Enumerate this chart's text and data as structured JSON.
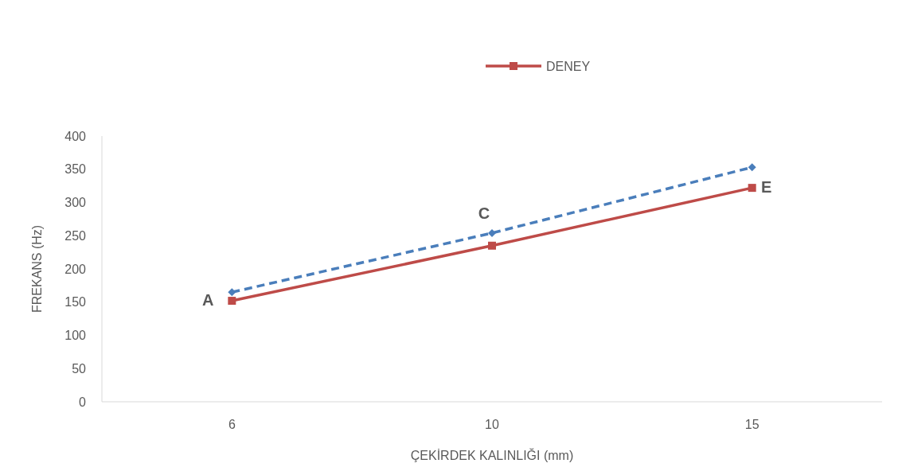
{
  "chart_data": {
    "type": "line",
    "xlabel": "ÇEKİRDEK KALINLIĞI (mm)",
    "ylabel": "FREKANS  (Hz)",
    "categories": [
      "6",
      "10",
      "15"
    ],
    "ylim": [
      0,
      400
    ],
    "yticks": [
      0,
      50,
      100,
      150,
      200,
      250,
      300,
      350,
      400
    ],
    "grid": false,
    "legend": "top",
    "series": [
      {
        "color": "#4a7ebb",
        "values": [
          165,
          254,
          353
        ],
        "marker": "diamond",
        "line_style": "dashed"
      },
      {
        "name": "DENEY",
        "color": "#be4b48",
        "values": [
          152,
          235,
          322
        ],
        "marker": "square",
        "line_style": "solid"
      }
    ],
    "annotations": [
      {
        "text": "A",
        "x": "6",
        "y": 152
      },
      {
        "text": "C",
        "x": "10",
        "y": 254
      },
      {
        "text": "E",
        "x": "15",
        "y": 322
      }
    ]
  }
}
